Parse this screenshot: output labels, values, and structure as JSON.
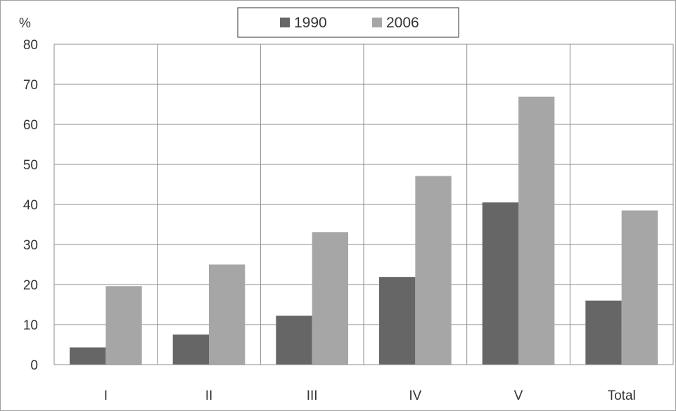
{
  "chart_data": {
    "type": "bar",
    "categories": [
      "I",
      "II",
      "III",
      "IV",
      "V",
      "Total"
    ],
    "series": [
      {
        "name": "1990",
        "values": [
          4.3,
          7.5,
          12.2,
          21.9,
          40.5,
          16.0
        ],
        "color": "#666666"
      },
      {
        "name": "2006",
        "values": [
          19.6,
          25.0,
          33.1,
          47.1,
          66.9,
          38.5
        ],
        "color": "#a6a6a6"
      }
    ],
    "title": "",
    "xlabel": "",
    "ylabel": "%",
    "ylim": [
      0,
      80
    ],
    "yticks": [
      0,
      10,
      20,
      30,
      40,
      50,
      60,
      70,
      80
    ],
    "grid": "on",
    "legend_position": "top-center"
  }
}
